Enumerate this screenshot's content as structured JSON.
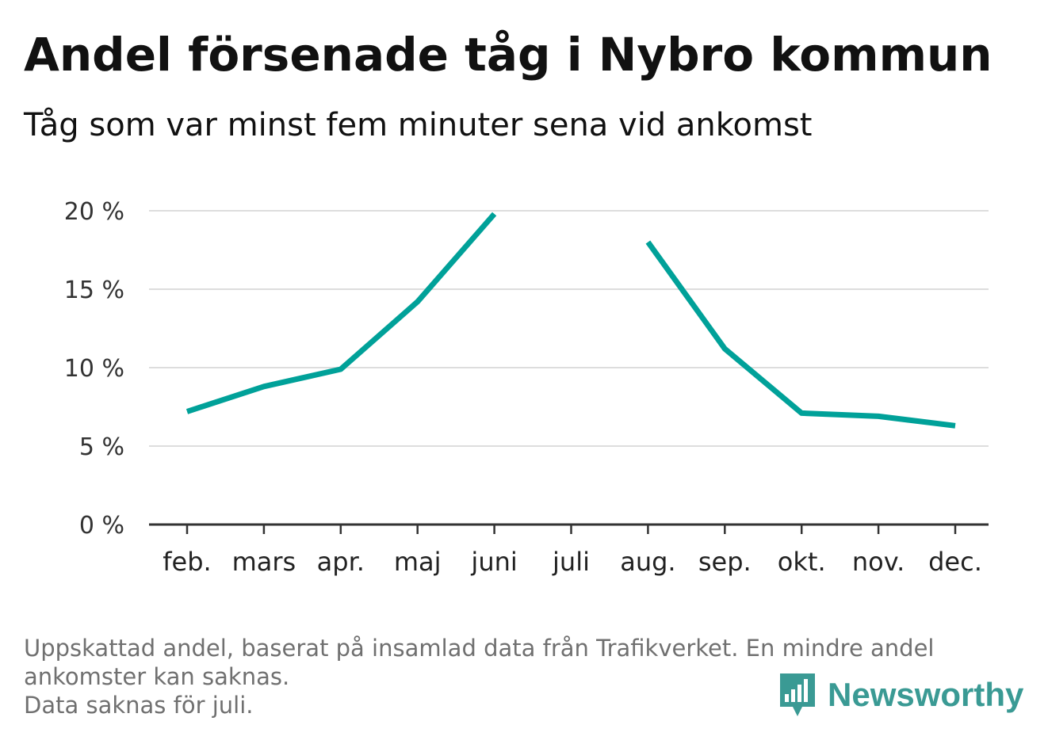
{
  "title": "Andel försenade tåg i Nybro kommun",
  "subtitle": "Tåg som var minst fem minuter sena vid ankomst",
  "chart_data": {
    "type": "line",
    "categories": [
      "feb.",
      "mars",
      "apr.",
      "maj",
      "juni",
      "juli",
      "aug.",
      "sep.",
      "okt.",
      "nov.",
      "dec."
    ],
    "series": [
      {
        "values": [
          7.2,
          8.8,
          9.9,
          14.2,
          19.8,
          null,
          18.0,
          11.2,
          7.1,
          6.9,
          6.3
        ],
        "color": "#00a199"
      }
    ],
    "yticks": [
      0,
      5,
      10,
      15,
      20
    ],
    "ytick_labels": [
      "0 %",
      "5 %",
      "10 %",
      "15 %",
      "20 %"
    ],
    "ylim": [
      0,
      20
    ],
    "grid": true,
    "line_color": "#00a199",
    "grid_color": "#dddddd",
    "axis_color": "#333333"
  },
  "footnote": {
    "line1": "Uppskattad andel, baserat på insamlad data från Trafikverket. En mindre andel",
    "line2": "ankomster kan saknas.",
    "line3": "Data saknas för juli."
  },
  "logo": {
    "text": "Newsworthy",
    "icon": "newsworthy-bar-chart-icon",
    "color": "#3a9a94"
  }
}
